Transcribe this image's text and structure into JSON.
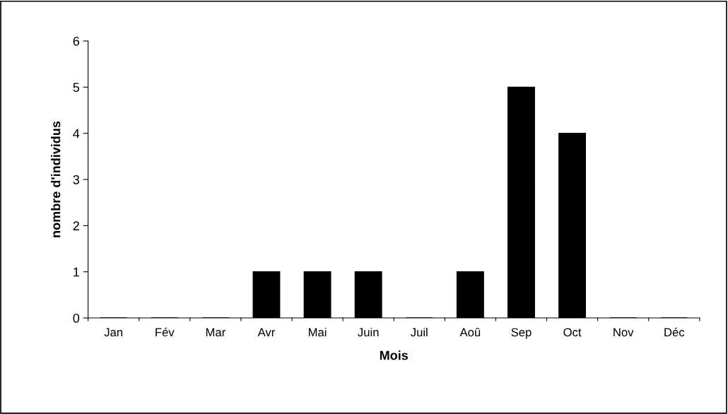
{
  "chart_data": {
    "type": "bar",
    "xlabel": "Mois",
    "ylabel": "nombre d'individus",
    "categories": [
      "Jan",
      "Fév",
      "Mar",
      "Avr",
      "Mai",
      "Juin",
      "Juil",
      "Aoû",
      "Sep",
      "Oct",
      "Nov",
      "Déc"
    ],
    "values": [
      0,
      0,
      0,
      1,
      1,
      1,
      0,
      1,
      5,
      4,
      0,
      0
    ],
    "color": "#000000",
    "ylim": [
      0,
      6
    ],
    "yticks": [
      0,
      1,
      2,
      3,
      4,
      5,
      6
    ],
    "grid": false,
    "legend": false
  }
}
